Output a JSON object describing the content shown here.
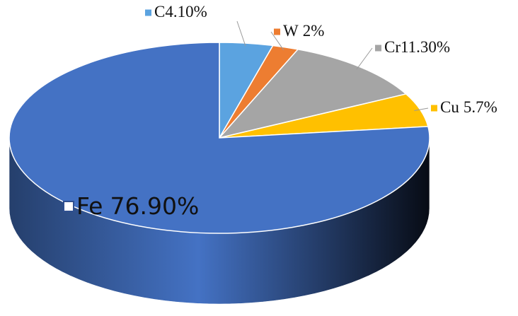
{
  "chart_data": {
    "type": "pie3d",
    "categories": [
      "C",
      "W",
      "Cr",
      "Cu",
      "Fe"
    ],
    "values": [
      4.1,
      2,
      11.3,
      5.7,
      76.9
    ],
    "value_labels": [
      "4.10%",
      "2%",
      "11.30%",
      "5.7%",
      "76.90%"
    ],
    "colors": [
      "#5ba3e0",
      "#ed7d31",
      "#a5a5a5",
      "#ffc000",
      "#4472c4"
    ]
  }
}
